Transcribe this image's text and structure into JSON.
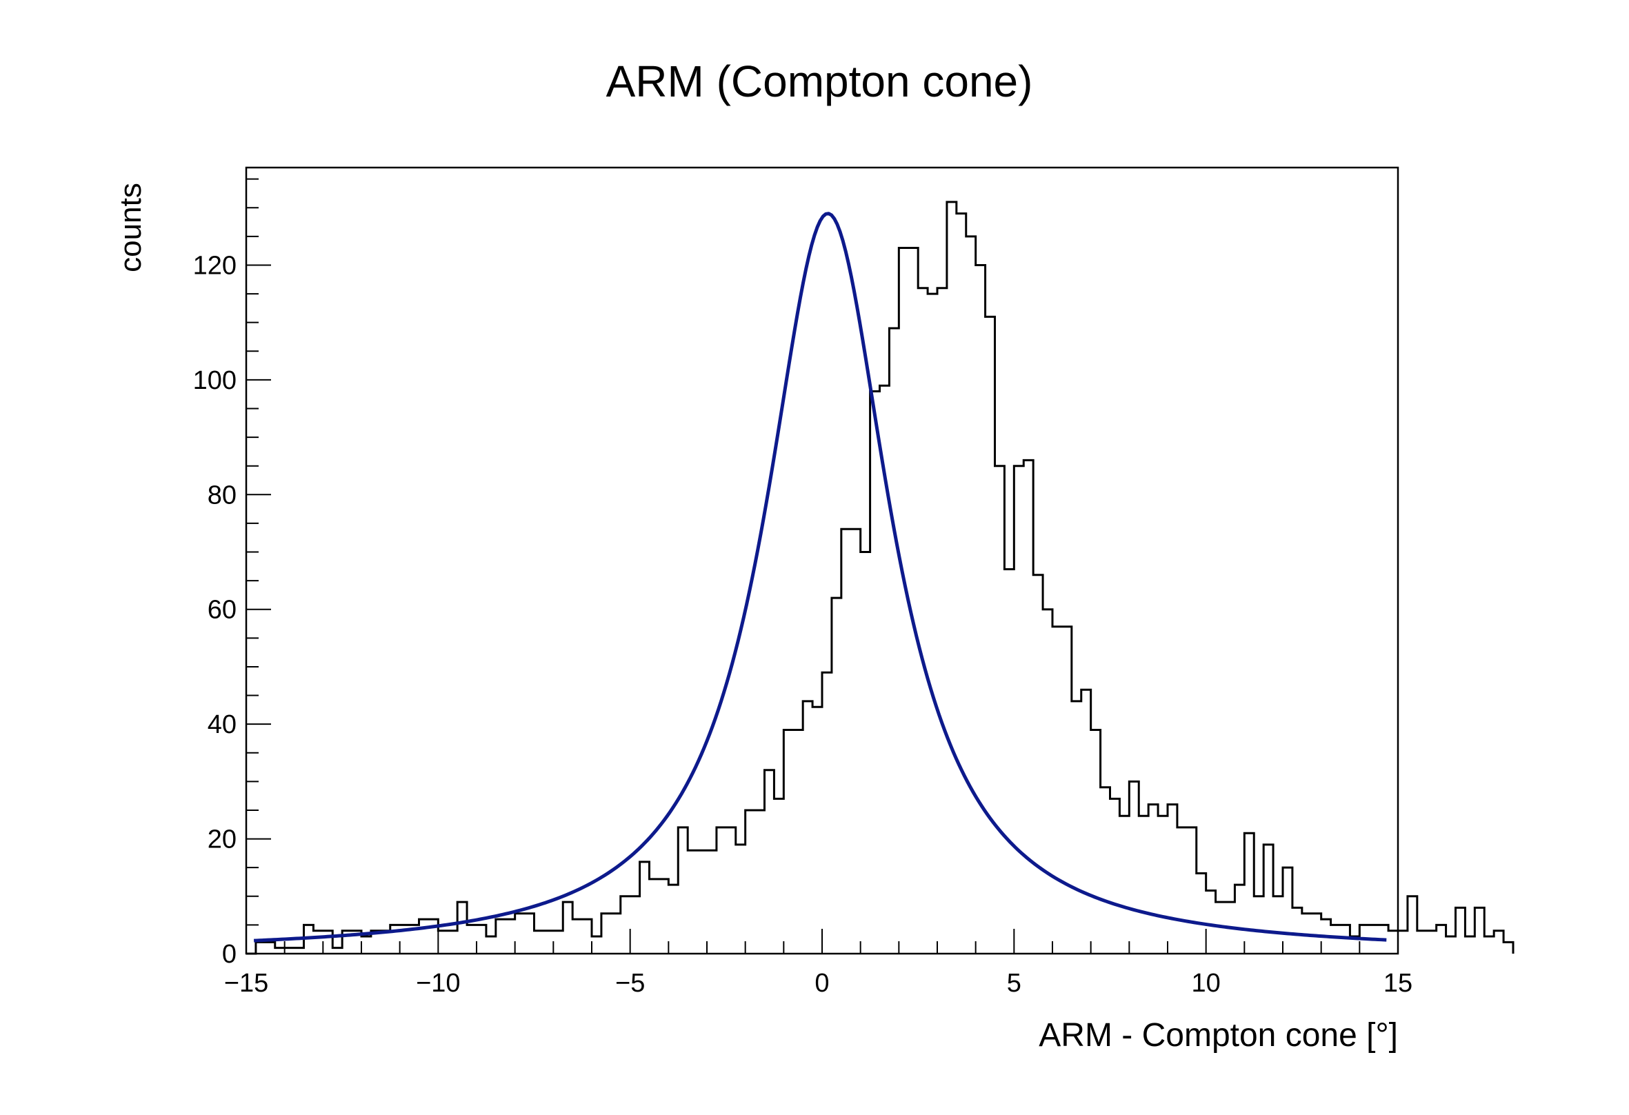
{
  "chart_data": {
    "type": "histogram",
    "title": "ARM (Compton cone)",
    "xlabel": "ARM - Compton cone [°]",
    "ylabel": "counts",
    "xlim": [
      -15,
      15
    ],
    "ylim": [
      0,
      137
    ],
    "x_ticks": [
      -15,
      -10,
      -5,
      0,
      5,
      10,
      15
    ],
    "x_tick_labels": [
      "−15",
      "−10",
      "−5",
      "0",
      "5",
      "10",
      "15"
    ],
    "y_ticks": [
      0,
      20,
      40,
      60,
      80,
      100,
      120
    ],
    "y_tick_labels": [
      "0",
      "20",
      "40",
      "60",
      "80",
      "100",
      "120"
    ],
    "grid": false,
    "legend": "none",
    "histogram": {
      "bin_edges_start": -15,
      "bin_width": 0.25,
      "counts": [
        0,
        2,
        2,
        1,
        1,
        1,
        5,
        4,
        4,
        1,
        4,
        4,
        3,
        4,
        4,
        5,
        5,
        5,
        6,
        6,
        4,
        4,
        9,
        5,
        5,
        3,
        6,
        6,
        7,
        7,
        4,
        4,
        4,
        9,
        6,
        6,
        3,
        7,
        7,
        10,
        10,
        16,
        13,
        13,
        12,
        22,
        18,
        18,
        18,
        22,
        22,
        19,
        25,
        25,
        32,
        27,
        39,
        39,
        44,
        43,
        49,
        62,
        74,
        74,
        70,
        98,
        99,
        109,
        123,
        123,
        116,
        115,
        116,
        131,
        129,
        125,
        120,
        111,
        85,
        67,
        85,
        86,
        66,
        60,
        57,
        57,
        44,
        46,
        39,
        29,
        27,
        24,
        30,
        24,
        26,
        24,
        26,
        22,
        22,
        14,
        11,
        9,
        9,
        12,
        21,
        10,
        19,
        10,
        15,
        8,
        7,
        7,
        6,
        5,
        5,
        3,
        5,
        5,
        5,
        4,
        4,
        10,
        4,
        4,
        5,
        3,
        8,
        3,
        8,
        3,
        4,
        2
      ],
      "stroke": "#000000"
    },
    "fit_curve": {
      "function": "lorentzian",
      "amplitude": 129,
      "center": 0.15,
      "hwhm": 2.0,
      "x_start": -14.8,
      "x_end": 14.7,
      "color": "#0d1a8c"
    }
  }
}
